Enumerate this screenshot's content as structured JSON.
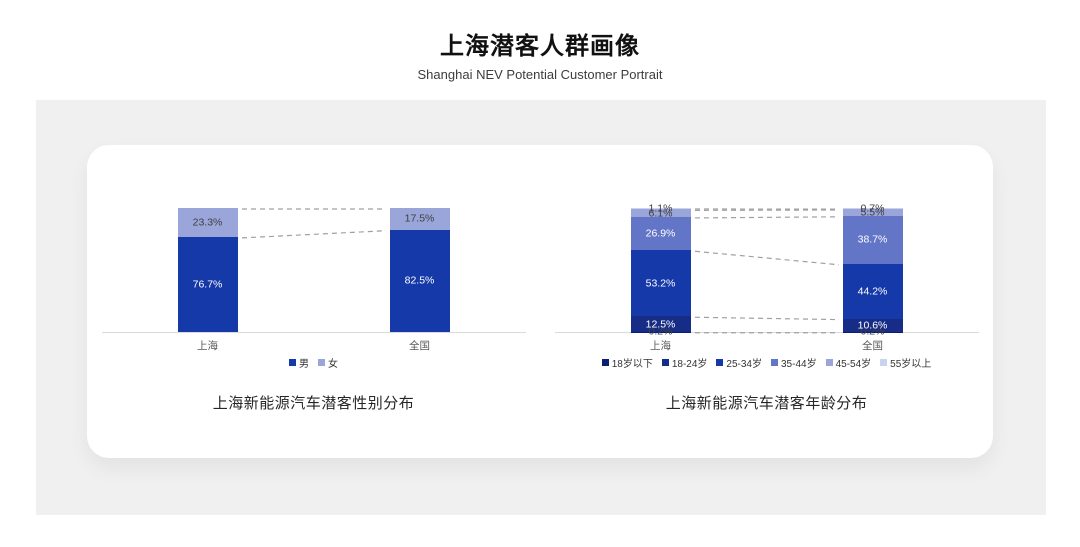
{
  "page": {
    "title": "上海潜客人群画像",
    "subtitle": "Shanghai NEV Potential Customer Portrait"
  },
  "chart_data": [
    {
      "type": "bar",
      "stacked": true,
      "title": "上海新能源汽车潜客性别分布",
      "categories": [
        "上海",
        "全国"
      ],
      "series": [
        {
          "name": "男",
          "values": [
            76.7,
            82.5
          ],
          "color": "#1539A8",
          "label_color": "#ffffff"
        },
        {
          "name": "女",
          "values": [
            23.3,
            17.5
          ],
          "color": "#9AA5D9",
          "label_color": "#404040"
        }
      ],
      "value_suffix": "%",
      "ylim": [
        0,
        100
      ],
      "grid": false,
      "legend_position": "bottom",
      "connector_style": "dashed"
    },
    {
      "type": "bar",
      "stacked": true,
      "title": "上海新能源汽车潜客年龄分布",
      "categories": [
        "上海",
        "全国"
      ],
      "series": [
        {
          "name": "18岁以下",
          "values": [
            0.2,
            0.2
          ],
          "color": "#0C1F6E",
          "label_color": "#404040"
        },
        {
          "name": "18-24岁",
          "values": [
            12.5,
            10.6
          ],
          "color": "#162C86",
          "label_color": "#ffffff"
        },
        {
          "name": "25-34岁",
          "values": [
            53.2,
            44.2
          ],
          "color": "#1539A8",
          "label_color": "#ffffff"
        },
        {
          "name": "35-44岁",
          "values": [
            26.9,
            38.7
          ],
          "color": "#6375C6",
          "label_color": "#ffffff"
        },
        {
          "name": "45-54岁",
          "values": [
            6.1,
            5.5
          ],
          "color": "#9AA5D9",
          "label_color": "#404040"
        },
        {
          "name": "55岁以上",
          "values": [
            1.1,
            0.7
          ],
          "color": "#CBD2EC",
          "label_color": "#404040"
        }
      ],
      "value_suffix": "%",
      "ylim": [
        0,
        100
      ],
      "grid": false,
      "legend_position": "bottom",
      "connector_style": "dashed"
    }
  ],
  "colors": {
    "panel_background": "#F0F0F1",
    "card_background": "#FFFFFF",
    "axis_line": "#DADADA",
    "connector_line": "#A0A0A0",
    "category_label": "#595959",
    "legend_text": "#333333",
    "caption_text": "#262626"
  }
}
